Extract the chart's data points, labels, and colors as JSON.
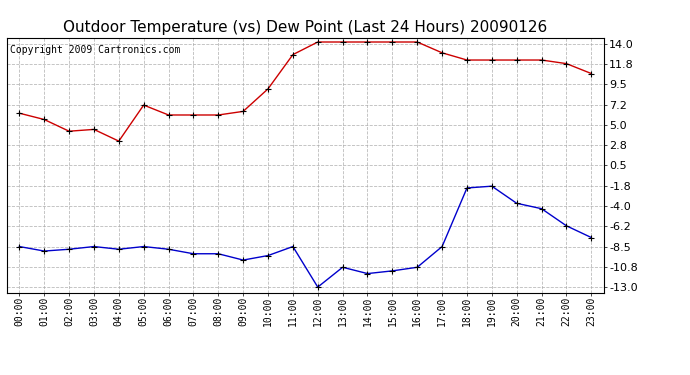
{
  "title": "Outdoor Temperature (vs) Dew Point (Last 24 Hours) 20090126",
  "copyright": "Copyright 2009 Cartronics.com",
  "x_labels": [
    "00:00",
    "01:00",
    "02:00",
    "03:00",
    "04:00",
    "05:00",
    "06:00",
    "07:00",
    "08:00",
    "09:00",
    "10:00",
    "11:00",
    "12:00",
    "13:00",
    "14:00",
    "15:00",
    "16:00",
    "17:00",
    "18:00",
    "19:00",
    "20:00",
    "21:00",
    "22:00",
    "23:00"
  ],
  "temp_data": [
    6.3,
    5.6,
    4.3,
    4.5,
    3.2,
    7.2,
    6.1,
    6.1,
    6.1,
    6.5,
    9.0,
    12.8,
    14.2,
    14.2,
    14.2,
    14.2,
    14.2,
    13.0,
    12.2,
    12.2,
    12.2,
    12.2,
    11.8,
    10.7
  ],
  "dew_data": [
    -8.5,
    -9.0,
    -8.8,
    -8.5,
    -8.8,
    -8.5,
    -8.8,
    -9.3,
    -9.3,
    -10.0,
    -9.5,
    -8.5,
    -13.0,
    -10.8,
    -11.5,
    -11.2,
    -10.8,
    -8.5,
    -2.0,
    -1.8,
    -3.7,
    -4.3,
    -6.2,
    -7.5
  ],
  "temp_color": "#cc0000",
  "dew_color": "#0000cc",
  "bg_color": "#ffffff",
  "grid_color": "#aaaaaa",
  "y_ticks": [
    14.0,
    11.8,
    9.5,
    7.2,
    5.0,
    2.8,
    0.5,
    -1.8,
    -4.0,
    -6.2,
    -8.5,
    -10.8,
    -13.0
  ],
  "ylim": [
    -13.6,
    14.7
  ],
  "title_fontsize": 11,
  "copyright_fontsize": 7
}
